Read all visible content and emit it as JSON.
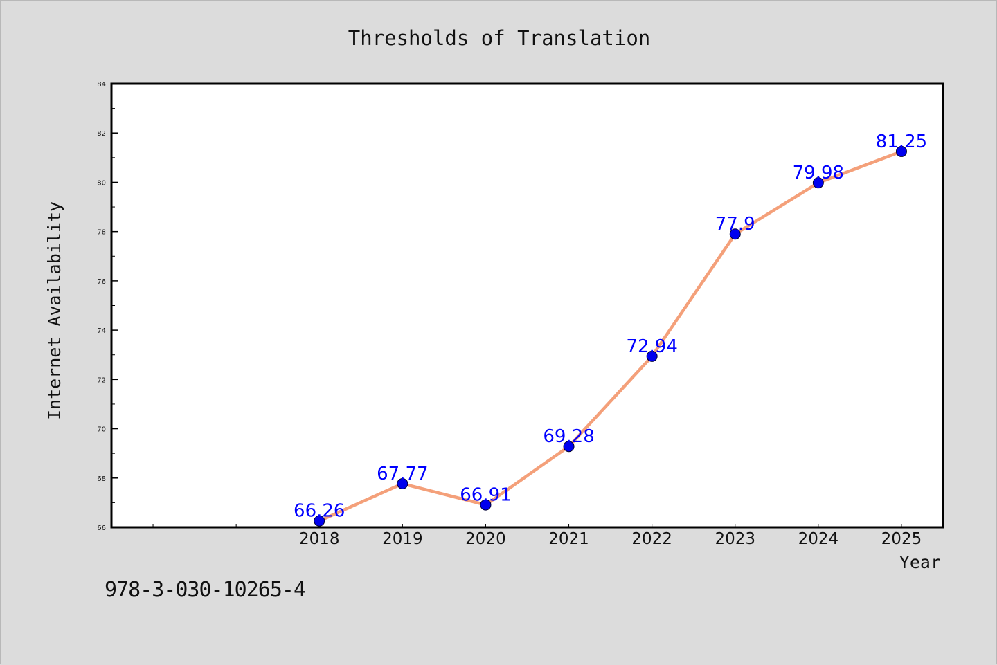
{
  "chart_data": {
    "type": "line",
    "title": "Thresholds of Translation",
    "xlabel": "Year",
    "ylabel": "Internet Availability",
    "categories": [
      "2018",
      "2019",
      "2020",
      "2021",
      "2022",
      "2023",
      "2024",
      "2025"
    ],
    "values": [
      66.26,
      67.77,
      66.91,
      69.28,
      72.94,
      77.9,
      79.98,
      81.25
    ],
    "data_labels": [
      "66.26",
      "67.77",
      "66.91",
      "69.28",
      "72.94",
      "77.9",
      "79.98",
      "81.25"
    ],
    "ylim": [
      66,
      84
    ],
    "yticks": [
      "66",
      "68",
      "70",
      "72",
      "74",
      "76",
      "78",
      "80",
      "82",
      "84"
    ],
    "x_slots": 10,
    "x_offset": 2,
    "grid": false,
    "line_color": "#f4a07a",
    "marker_color": "#0000ee",
    "label_color": "#0000ff"
  },
  "footer": {
    "isbn": "978-3-030-10265-4"
  }
}
